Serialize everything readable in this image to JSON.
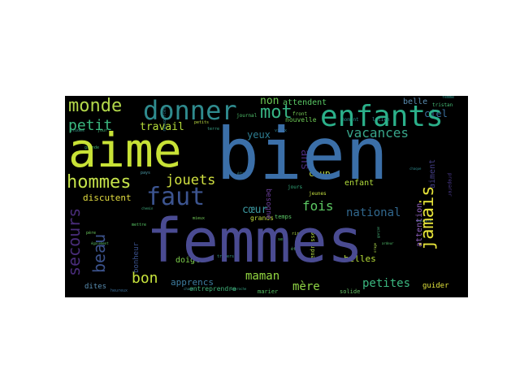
{
  "wordcloud": {
    "words": [
      {
        "text": "bien",
        "color": "#3b6fa8",
        "size": 88
      },
      {
        "text": "femmes",
        "color": "#4a4b92",
        "size": 74
      },
      {
        "text": "aime",
        "color": "#c8e236",
        "size": 58
      },
      {
        "text": "enfants",
        "color": "#2bb08a",
        "size": 36
      },
      {
        "text": "donner",
        "color": "#2f8b8e",
        "size": 32
      },
      {
        "text": "faut",
        "color": "#3c548f",
        "size": 30
      },
      {
        "text": "monde",
        "color": "#b2d74a",
        "size": 22
      },
      {
        "text": "hommes",
        "color": "#c5e24a",
        "size": 22
      },
      {
        "text": "mot",
        "color": "#37b584",
        "size": 22
      },
      {
        "text": "jamais",
        "color": "#e6e33a",
        "size": 22
      },
      {
        "text": "petit",
        "color": "#3bb980",
        "size": 18
      },
      {
        "text": "secours",
        "color": "#482c78",
        "size": 20
      },
      {
        "text": "beau",
        "color": "#3b528b",
        "size": 20
      },
      {
        "text": "bon",
        "color": "#c7e33c",
        "size": 18
      },
      {
        "text": "jouets",
        "color": "#d0e040",
        "size": 17
      },
      {
        "text": "vacances",
        "color": "#38a58a",
        "size": 16
      },
      {
        "text": "fois",
        "color": "#5cc863",
        "size": 16
      },
      {
        "text": "national",
        "color": "#31688e",
        "size": 14
      },
      {
        "text": "maman",
        "color": "#93d741",
        "size": 14
      },
      {
        "text": "mère",
        "color": "#90d545",
        "size": 14
      },
      {
        "text": "petites",
        "color": "#3bb880",
        "size": 14
      },
      {
        "text": "cœur",
        "color": "#3c98a0",
        "size": 13
      },
      {
        "text": "travail",
        "color": "#b5dd3a",
        "size": 13
      },
      {
        "text": "non",
        "color": "#6ecb56",
        "size": 13
      },
      {
        "text": "ans",
        "color": "#472a7a",
        "size": 14
      },
      {
        "text": "yeux",
        "color": "#2e7d91",
        "size": 12
      },
      {
        "text": "discutent",
        "color": "#e3dd40",
        "size": 11
      },
      {
        "text": "apprencs",
        "color": "#3e7da0",
        "size": 11
      },
      {
        "text": "doigts",
        "color": "#7ed04b",
        "size": 10
      },
      {
        "text": "belles",
        "color": "#b8de38",
        "size": 11
      },
      {
        "text": "attention",
        "color": "#8f5fbf",
        "size": 10
      },
      {
        "text": "aiment",
        "color": "#433e85",
        "size": 10
      },
      {
        "text": "ciel",
        "color": "#3a6f9e",
        "size": 12
      },
      {
        "text": "enfant",
        "color": "#b2dd3c",
        "size": 10
      },
      {
        "text": "coup",
        "color": "#c4e046",
        "size": 11
      },
      {
        "text": "belle",
        "color": "#5a8db0",
        "size": 10
      },
      {
        "text": "attendent",
        "color": "#59c864",
        "size": 10
      },
      {
        "text": "nouvelle",
        "color": "#6ecb56",
        "size": 8
      },
      {
        "text": "bonheur",
        "color": "#3c538e",
        "size": 9
      },
      {
        "text": "dites",
        "color": "#5a8fb3",
        "size": 9
      },
      {
        "text": "entreprendre",
        "color": "#41b47a",
        "size": 8
      },
      {
        "text": "grands",
        "color": "#c2df3d",
        "size": 8
      },
      {
        "text": "temps",
        "color": "#5bc866",
        "size": 7
      },
      {
        "text": "besogne",
        "color": "#6a3d9a",
        "size": 9
      },
      {
        "text": "guider",
        "color": "#e2e43c",
        "size": 9
      },
      {
        "text": "tendresse",
        "color": "#b5dd43",
        "size": 7
      },
      {
        "text": "solide",
        "color": "#66c668",
        "size": 7
      },
      {
        "text": "marier",
        "color": "#55c565",
        "size": 7
      },
      {
        "text": "jeunes",
        "color": "#c9e441",
        "size": 6
      },
      {
        "text": "jours",
        "color": "#35b080",
        "size": 6
      },
      {
        "text": "journal",
        "color": "#4fc16b",
        "size": 6
      },
      {
        "text": "front",
        "color": "#7bd35a",
        "size": 6
      },
      {
        "text": "moment",
        "color": "#2a8f8e",
        "size": 6
      },
      {
        "text": "lucien",
        "color": "#3a91a0",
        "size": 6
      },
      {
        "text": "tristan",
        "color": "#47bd77",
        "size": 6
      },
      {
        "text": "femme",
        "color": "#2c9085",
        "size": 5
      },
      {
        "text": "grande",
        "color": "#42b26f",
        "size": 5
      },
      {
        "text": "mettre",
        "color": "#58c765",
        "size": 5
      },
      {
        "text": "mieux",
        "color": "#74cc59",
        "size": 5
      },
      {
        "text": "travers",
        "color": "#3b9b8c",
        "size": 5
      },
      {
        "text": "père",
        "color": "#6bc85e",
        "size": 5
      },
      {
        "text": "pays",
        "color": "#4c9ba8",
        "size": 5
      },
      {
        "text": "étage",
        "color": "#3d8a8e",
        "size": 5
      },
      {
        "text": "vieux",
        "color": "#2e7f8e",
        "size": 5
      },
      {
        "text": "rire",
        "color": "#b1db48",
        "size": 5
      },
      {
        "text": "êtes",
        "color": "#5bb671",
        "size": 5
      },
      {
        "text": "sens",
        "color": "#54c065",
        "size": 5
      },
      {
        "text": "terre",
        "color": "#39a286",
        "size": 5
      },
      {
        "text": "études",
        "color": "#3a9a8a",
        "size": 5
      },
      {
        "text": "jour",
        "color": "#45b579",
        "size": 5
      },
      {
        "text": "petits",
        "color": "#c0df44",
        "size": 5
      },
      {
        "text": "ressources",
        "color": "#2b7a8d",
        "size": 5
      },
      {
        "text": "chemin",
        "color": "#3fa87c",
        "size": 4
      },
      {
        "text": "également",
        "color": "#5fc36a",
        "size": 4
      },
      {
        "text": "chaque",
        "color": "#2e8a8d",
        "size": 4
      },
      {
        "text": "garçon",
        "color": "#47b57b",
        "size": 4
      },
      {
        "text": "heureux",
        "color": "#3a6e9b",
        "size": 5
      },
      {
        "text": "chaud",
        "color": "#3c8a97",
        "size": 4
      },
      {
        "text": "approche",
        "color": "#36a082",
        "size": 4
      },
      {
        "text": "orage",
        "color": "#aed84a",
        "size": 4
      },
      {
        "text": "ardeur",
        "color": "#52bf6d",
        "size": 4
      },
      {
        "text": "preparer",
        "color": "#4b3a8c",
        "size": 6
      },
      {
        "text": "capitale",
        "color": "#3a8e91",
        "size": 4
      }
    ]
  }
}
